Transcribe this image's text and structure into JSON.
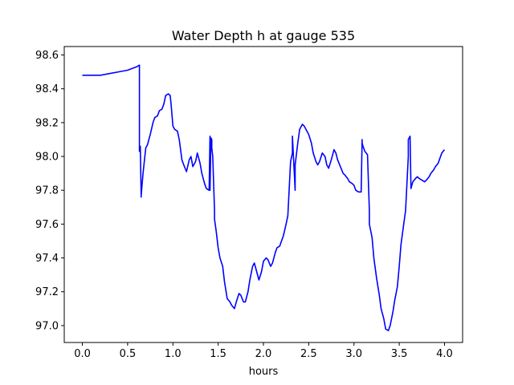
{
  "chart_data": {
    "type": "line",
    "title": "Water Depth h at gauge 535",
    "xlabel": "hours",
    "ylabel": "",
    "xlim": [
      -0.2,
      4.2
    ],
    "ylim": [
      96.9,
      98.65
    ],
    "grid": false,
    "legend": "none",
    "xticks": [
      0.0,
      0.5,
      1.0,
      1.5,
      2.0,
      2.5,
      3.0,
      3.5,
      4.0
    ],
    "xtick_labels": [
      "0.0",
      "0.5",
      "1.0",
      "1.5",
      "2.0",
      "2.5",
      "3.0",
      "3.5",
      "4.0"
    ],
    "yticks": [
      97.0,
      97.2,
      97.4,
      97.6,
      97.8,
      98.0,
      98.2,
      98.4,
      98.6
    ],
    "ytick_labels": [
      "97.0",
      "97.2",
      "97.4",
      "97.6",
      "97.8",
      "98.0",
      "98.2",
      "98.4",
      "98.6"
    ],
    "series": [
      {
        "color": "#0000ff",
        "x": [
          0.0,
          0.2,
          0.3,
          0.4,
          0.5,
          0.55,
          0.6,
          0.63,
          0.63,
          0.64,
          0.65,
          0.65,
          0.67,
          0.7,
          0.72,
          0.75,
          0.78,
          0.8,
          0.83,
          0.85,
          0.88,
          0.9,
          0.92,
          0.95,
          0.97,
          0.98,
          1.0,
          1.02,
          1.05,
          1.07,
          1.1,
          1.12,
          1.15,
          1.18,
          1.2,
          1.22,
          1.25,
          1.27,
          1.3,
          1.32,
          1.35,
          1.37,
          1.4,
          1.41,
          1.41,
          1.42,
          1.43,
          1.43,
          1.44,
          1.46,
          1.46,
          1.48,
          1.5,
          1.52,
          1.55,
          1.57,
          1.6,
          1.63,
          1.65,
          1.68,
          1.7,
          1.73,
          1.75,
          1.78,
          1.8,
          1.83,
          1.85,
          1.88,
          1.9,
          1.93,
          1.95,
          1.98,
          2.0,
          2.03,
          2.05,
          2.08,
          2.1,
          2.13,
          2.15,
          2.18,
          2.2,
          2.22,
          2.25,
          2.27,
          2.3,
          2.32,
          2.32,
          2.35,
          2.35,
          2.38,
          2.4,
          2.43,
          2.45,
          2.48,
          2.5,
          2.53,
          2.55,
          2.58,
          2.6,
          2.62,
          2.65,
          2.68,
          2.7,
          2.72,
          2.75,
          2.78,
          2.8,
          2.82,
          2.85,
          2.88,
          2.9,
          2.93,
          2.95,
          2.98,
          3.0,
          3.02,
          3.05,
          3.08,
          3.09,
          3.09,
          3.1,
          3.12,
          3.15,
          3.17,
          3.17,
          3.2,
          3.22,
          3.25,
          3.28,
          3.3,
          3.33,
          3.35,
          3.38,
          3.4,
          3.43,
          3.45,
          3.48,
          3.5,
          3.52,
          3.55,
          3.57,
          3.6,
          3.6,
          3.62,
          3.63,
          3.63,
          3.65,
          3.68,
          3.7,
          3.72,
          3.75,
          3.78,
          3.8,
          3.83,
          3.85,
          3.88,
          3.9,
          3.93,
          3.95,
          3.97,
          4.0
        ],
        "y": [
          98.48,
          98.48,
          98.49,
          98.5,
          98.51,
          98.52,
          98.53,
          98.54,
          98.03,
          98.06,
          97.76,
          97.77,
          97.9,
          98.05,
          98.07,
          98.13,
          98.2,
          98.23,
          98.24,
          98.27,
          98.28,
          98.31,
          98.36,
          98.37,
          98.36,
          98.31,
          98.18,
          98.16,
          98.15,
          98.1,
          97.98,
          97.95,
          97.91,
          97.98,
          98.0,
          97.94,
          97.97,
          98.02,
          97.96,
          97.9,
          97.84,
          97.81,
          97.8,
          98.12,
          97.8,
          98.11,
          98.1,
          98.05,
          98.0,
          97.68,
          97.63,
          97.55,
          97.46,
          97.4,
          97.35,
          97.26,
          97.16,
          97.14,
          97.12,
          97.1,
          97.14,
          97.19,
          97.18,
          97.14,
          97.14,
          97.2,
          97.27,
          97.35,
          97.37,
          97.31,
          97.27,
          97.32,
          97.38,
          97.4,
          97.39,
          97.35,
          97.37,
          97.43,
          97.46,
          97.47,
          97.5,
          97.53,
          97.6,
          97.65,
          97.97,
          98.02,
          98.12,
          97.8,
          97.95,
          98.08,
          98.16,
          98.19,
          98.18,
          98.15,
          98.13,
          98.08,
          98.02,
          97.97,
          97.95,
          97.97,
          98.02,
          98.0,
          97.95,
          97.93,
          97.98,
          98.04,
          98.02,
          97.98,
          97.94,
          97.9,
          97.89,
          97.87,
          97.85,
          97.84,
          97.83,
          97.8,
          97.79,
          97.79,
          98.1,
          98.08,
          98.06,
          98.03,
          98.01,
          97.68,
          97.6,
          97.52,
          97.4,
          97.28,
          97.18,
          97.1,
          97.04,
          96.98,
          96.97,
          97.0,
          97.08,
          97.15,
          97.23,
          97.35,
          97.48,
          97.6,
          97.68,
          98.0,
          98.1,
          98.12,
          97.82,
          97.81,
          97.85,
          97.87,
          97.88,
          97.87,
          97.86,
          97.85,
          97.86,
          97.88,
          97.9,
          97.92,
          97.94,
          97.96,
          97.99,
          98.02,
          98.04
        ]
      }
    ]
  }
}
